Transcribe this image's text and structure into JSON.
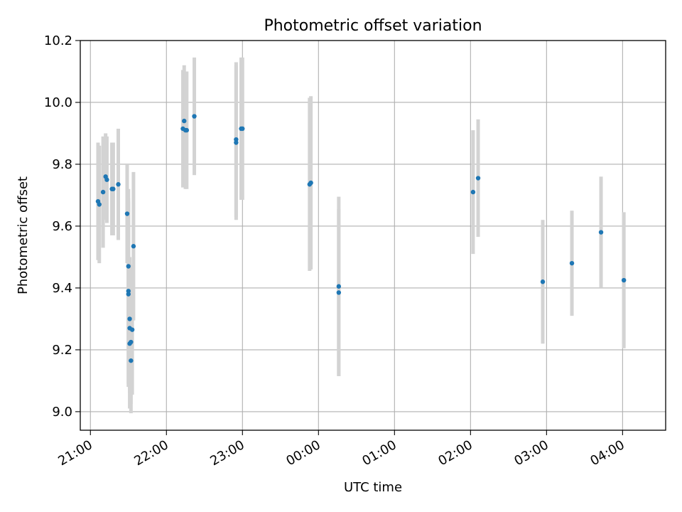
{
  "chart_data": {
    "type": "scatter",
    "title": "Photometric offset variation",
    "xlabel": "UTC time",
    "ylabel": "Photometric offset",
    "xlim": [
      "20:52",
      "04:34"
    ],
    "ylim": [
      8.94,
      10.2
    ],
    "x_ticks": [
      "21:00",
      "22:00",
      "23:00",
      "00:00",
      "01:00",
      "02:00",
      "03:00",
      "04:00"
    ],
    "y_ticks": [
      "9.0",
      "9.2",
      "9.4",
      "9.6",
      "9.8",
      "10.0",
      "10.2"
    ],
    "grid": true,
    "colors": {
      "points": "#1f77b4",
      "errorbars": "#d3d3d3",
      "grid": "#b0b0b0"
    },
    "points": [
      {
        "x": "21:06",
        "y": 9.68,
        "err": 0.19
      },
      {
        "x": "21:07",
        "y": 9.67,
        "err": 0.19
      },
      {
        "x": "21:10",
        "y": 9.71,
        "err": 0.18
      },
      {
        "x": "21:12",
        "y": 9.76,
        "err": 0.14
      },
      {
        "x": "21:13",
        "y": 9.75,
        "err": 0.14
      },
      {
        "x": "21:17",
        "y": 9.72,
        "err": 0.15
      },
      {
        "x": "21:18",
        "y": 9.72,
        "err": 0.15
      },
      {
        "x": "21:22",
        "y": 9.735,
        "err": 0.18
      },
      {
        "x": "21:29",
        "y": 9.64,
        "err": 0.16
      },
      {
        "x": "21:30",
        "y": 9.47,
        "err": 0.25
      },
      {
        "x": "21:30",
        "y": 9.39,
        "err": 0.3
      },
      {
        "x": "21:30",
        "y": 9.38,
        "err": 0.3
      },
      {
        "x": "21:31",
        "y": 9.3,
        "err": 0.2
      },
      {
        "x": "21:31",
        "y": 9.27,
        "err": 0.21
      },
      {
        "x": "21:31",
        "y": 9.22,
        "err": 0.21
      },
      {
        "x": "21:32",
        "y": 9.225,
        "err": 0.2
      },
      {
        "x": "21:32",
        "y": 9.165,
        "err": 0.17
      },
      {
        "x": "21:33",
        "y": 9.265,
        "err": 0.21
      },
      {
        "x": "21:34",
        "y": 9.535,
        "err": 0.24
      },
      {
        "x": "22:13",
        "y": 9.915,
        "err": 0.19
      },
      {
        "x": "22:14",
        "y": 9.94,
        "err": 0.18
      },
      {
        "x": "22:15",
        "y": 9.91,
        "err": 0.19
      },
      {
        "x": "22:16",
        "y": 9.91,
        "err": 0.19
      },
      {
        "x": "22:22",
        "y": 9.955,
        "err": 0.19
      },
      {
        "x": "22:55",
        "y": 9.87,
        "err": 0.25
      },
      {
        "x": "22:55",
        "y": 9.88,
        "err": 0.25
      },
      {
        "x": "22:59",
        "y": 9.915,
        "err": 0.23
      },
      {
        "x": "23:00",
        "y": 9.915,
        "err": 0.23
      },
      {
        "x": "23:53",
        "y": 9.735,
        "err": 0.28
      },
      {
        "x": "23:54",
        "y": 9.74,
        "err": 0.28
      },
      {
        "x": "00:16",
        "y": 9.405,
        "err": 0.29
      },
      {
        "x": "00:16",
        "y": 9.385,
        "err": 0.27
      },
      {
        "x": "02:02",
        "y": 9.71,
        "err": 0.2
      },
      {
        "x": "02:06",
        "y": 9.755,
        "err": 0.19
      },
      {
        "x": "02:57",
        "y": 9.42,
        "err": 0.2
      },
      {
        "x": "03:20",
        "y": 9.48,
        "err": 0.17
      },
      {
        "x": "03:43",
        "y": 9.58,
        "err": 0.18
      },
      {
        "x": "04:01",
        "y": 9.425,
        "err": 0.22
      }
    ]
  }
}
